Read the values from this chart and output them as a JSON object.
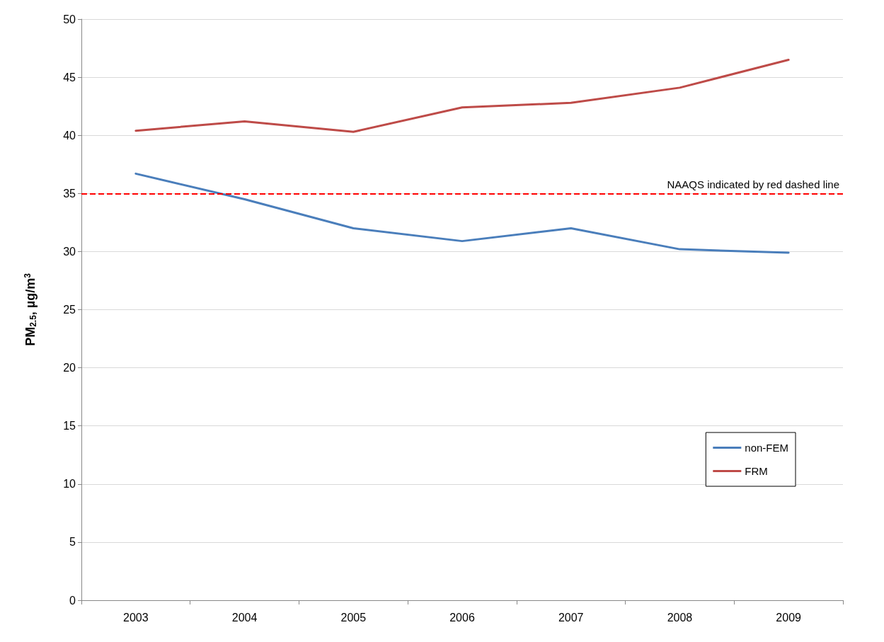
{
  "chart_data": {
    "type": "line",
    "ylabel": "PM$_{2.5}$, µg/m$^{3}$",
    "categories": [
      "2003",
      "2004",
      "2005",
      "2006",
      "2007",
      "2008",
      "2009"
    ],
    "series": [
      {
        "name": "non-FEM",
        "color": "#4a7ebb",
        "values": [
          36.7,
          34.5,
          32.0,
          30.9,
          32.0,
          30.2,
          29.9
        ]
      },
      {
        "name": "FRM",
        "color": "#be4b48",
        "values": [
          40.4,
          41.2,
          40.3,
          42.4,
          42.8,
          44.1,
          46.5
        ]
      }
    ],
    "ylim": [
      0,
      50
    ],
    "yticks": [
      0,
      5,
      10,
      15,
      20,
      25,
      30,
      35,
      40,
      45,
      50
    ],
    "ref_lines": [
      {
        "axis": "y",
        "value": 35,
        "label": "NAAQS indicated by red dashed line",
        "color": "#ff0000",
        "line_style": "dashed"
      }
    ],
    "grid": "y",
    "legend": "bottom right",
    "marker": "none",
    "line_style": "solid"
  }
}
